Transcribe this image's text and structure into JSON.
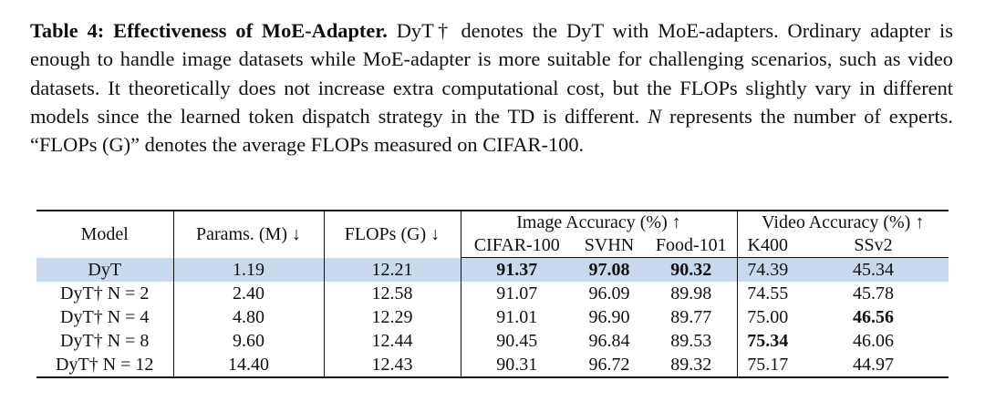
{
  "caption": {
    "label": "Table 4: Effectiveness of MoE-Adapter.",
    "text": [
      "DyT† denotes the DyT with MoE-adapters. Ordinary adapter is enough to handle image datasets while MoE-adapter is more suitable for challenging scenarios, such as video datasets. It theoretically does not increase extra computational cost, but the FLOPs slightly vary in different models since the learned token dispatch strategy in the TD is different. ",
      "N",
      " represents the number of experts. “FLOPs (G)” denotes the average FLOPs measured on CIFAR-100."
    ]
  },
  "table": {
    "header": [
      "Model",
      "Params. (M) ↓",
      "FLOPs (G) ↓",
      "Image Accuracy (%) ↑",
      "Video Accuracy (%) ↑"
    ],
    "subheader": [
      "CIFAR-100",
      "SVHN",
      "Food-101",
      "K400",
      "SSv2"
    ],
    "rows": [
      [
        "DyT",
        "1.19",
        "12.21",
        "91.37",
        "97.08",
        "90.32",
        "74.39",
        "45.34"
      ],
      [
        "DyT† N = 2",
        "2.40",
        "12.58",
        "91.07",
        "96.09",
        "89.98",
        "74.55",
        "45.78"
      ],
      [
        "DyT† N = 4",
        "4.80",
        "12.29",
        "91.01",
        "96.90",
        "89.77",
        "75.00",
        "46.56"
      ],
      [
        "DyT† N = 8",
        "9.60",
        "12.44",
        "90.45",
        "96.84",
        "89.53",
        "75.34",
        "46.06"
      ],
      [
        "DyT† N = 12",
        "14.40",
        "12.43",
        "90.31",
        "96.72",
        "89.32",
        "75.17",
        "44.97"
      ]
    ]
  }
}
